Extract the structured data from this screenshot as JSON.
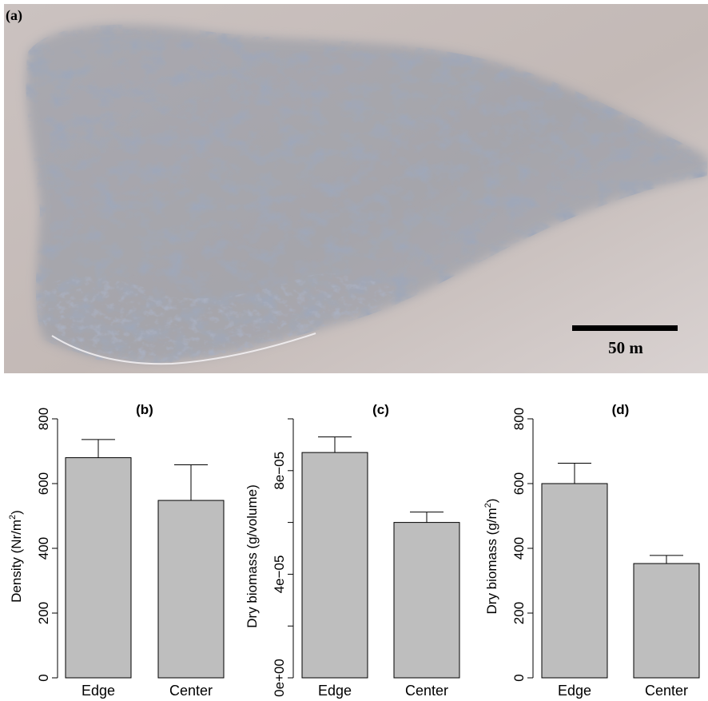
{
  "photo": {
    "panel_label": "(a)",
    "scale_bar_label": "50 m",
    "colors": {
      "sand": "#c6bbb8",
      "vegetation": "#5a6378",
      "sky_haze": "#d8d0cf",
      "foam": "#f4f2f4"
    }
  },
  "chart_data": [
    {
      "type": "bar",
      "title": "(b)",
      "categories": [
        "Edge",
        "Center"
      ],
      "values": [
        680,
        548
      ],
      "error_upper": [
        736,
        658
      ],
      "ylabel": "Density (Nr/m²)",
      "ylabel_parts": {
        "main": "Density (Nr/m",
        "sup": "2",
        "end": ")"
      },
      "ylim": [
        0,
        800
      ],
      "yticks": [
        0,
        200,
        400,
        600,
        800
      ],
      "ytick_labels": [
        "0",
        "200",
        "400",
        "600",
        "800"
      ],
      "bar_color": "#bebebe",
      "grid": false
    },
    {
      "type": "bar",
      "title": "(c)",
      "categories": [
        "Edge",
        "Center"
      ],
      "values": [
        8.7e-05,
        6e-05
      ],
      "error_upper": [
        9.3e-05,
        6.4e-05
      ],
      "ylabel": "Dry biomass (g/volume)",
      "ylabel_parts": {
        "main": "Dry biomass (g/volume)",
        "sup": "",
        "end": ""
      },
      "ylim": [
        0,
        0.0001
      ],
      "yticks": [
        0,
        2e-05,
        4e-05,
        6e-05,
        8e-05,
        0.0001
      ],
      "ytick_labels": [
        "0e+00",
        "",
        "4e−05",
        "",
        "8e−05",
        ""
      ],
      "bar_color": "#bebebe",
      "grid": false
    },
    {
      "type": "bar",
      "title": "(d)",
      "categories": [
        "Edge",
        "Center"
      ],
      "values": [
        600,
        353
      ],
      "error_upper": [
        663,
        378
      ],
      "ylabel": "Dry biomass (g/m²)",
      "ylabel_parts": {
        "main": "Dry biomass (g/m",
        "sup": "2",
        "end": ")"
      },
      "ylim": [
        0,
        800
      ],
      "yticks": [
        0,
        200,
        400,
        600,
        800
      ],
      "ytick_labels": [
        "0",
        "200",
        "400",
        "600",
        "800"
      ],
      "bar_color": "#bebebe",
      "grid": false
    }
  ]
}
